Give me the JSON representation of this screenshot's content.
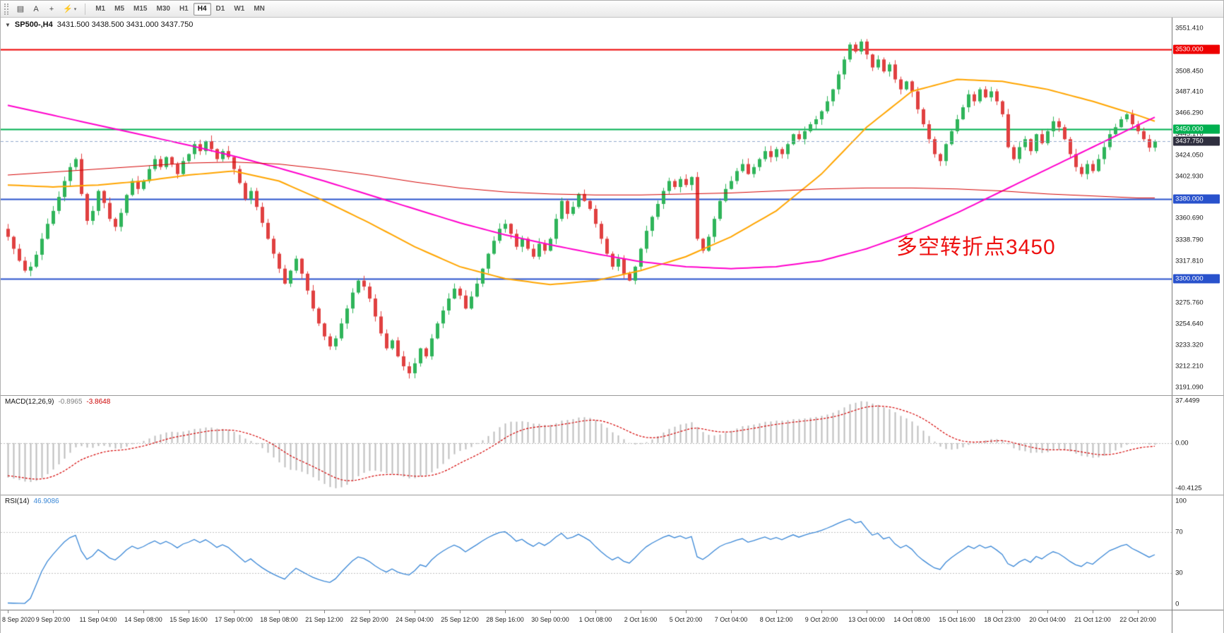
{
  "toolbar": {
    "icons": [
      {
        "name": "chart-list-icon",
        "glyph": "▤"
      },
      {
        "name": "cursor-a-button",
        "label": "A"
      },
      {
        "name": "crosshair-button",
        "glyph": "+"
      },
      {
        "name": "quick-tools-dropdown",
        "glyph": "⚡",
        "caret": "▾"
      }
    ],
    "timeframes": [
      "M1",
      "M5",
      "M15",
      "M30",
      "H1",
      "H4",
      "D1",
      "W1",
      "MN"
    ],
    "active_timeframe": "H4"
  },
  "chart_header": {
    "collapse_icon": "▼",
    "symbol_period": "SP500-,H4",
    "ohlc": "3431.500 3438.500 3431.000 3437.750"
  },
  "annotation": {
    "text": "多空转折点3450",
    "color": "#ee1111"
  },
  "price_axis": {
    "ticks": [
      "3551.410",
      "3508.450",
      "3487.410",
      "3466.290",
      "3445.170",
      "3424.050",
      "3402.930",
      "3360.690",
      "3338.790",
      "3317.810",
      "3275.760",
      "3254.640",
      "3233.320",
      "3212.210",
      "3191.090"
    ],
    "badges": [
      {
        "value": "3530.000",
        "price": 3530.0,
        "color": "#ee0000"
      },
      {
        "value": "3450.000",
        "price": 3450.0,
        "color": "#00b050"
      },
      {
        "value": "3437.750",
        "price": 3437.75,
        "color": "#2f2f3f"
      },
      {
        "value": "3380.000",
        "price": 3380.0,
        "color": "#2952cc"
      },
      {
        "value": "3300.000",
        "price": 3300.0,
        "color": "#2952cc"
      }
    ]
  },
  "hlines": [
    {
      "price": 3530.0,
      "color": "#ee0000",
      "width": 2
    },
    {
      "price": 3450.0,
      "color": "#00b050",
      "width": 2
    },
    {
      "price": 3380.0,
      "color": "#2952cc",
      "width": 2
    },
    {
      "price": 3300.0,
      "color": "#2952cc",
      "width": 2
    }
  ],
  "current_price": {
    "price": 3437.75,
    "color": "#90a8cc"
  },
  "indicators": {
    "macd": {
      "name": "MACD(12,26,9)",
      "value_main": "-0.8965",
      "value_signal": "-3.8648",
      "axis": [
        "37.4499",
        "0.00",
        "-40.4125"
      ],
      "range": [
        -46,
        42
      ],
      "hist_color": "#bdbdbd",
      "signal_color": "#d40000"
    },
    "rsi": {
      "name": "RSI(14)",
      "value": "46.9086",
      "axis": [
        "100",
        "70",
        "30",
        "0"
      ],
      "levels": [
        70,
        30
      ],
      "line_color": "#3a87d6"
    }
  },
  "chart_data": {
    "type": "candlestick",
    "title": "SP500-,H4",
    "symbol": "SP500-",
    "period": "H4",
    "price_range": [
      3183,
      3562
    ],
    "up_color": "#2fb45a",
    "down_color": "#e04040",
    "first_open": 3350,
    "closes": [
      3342,
      3330,
      3318,
      3308,
      3312,
      3324,
      3340,
      3355,
      3368,
      3382,
      3398,
      3412,
      3420,
      3385,
      3358,
      3368,
      3388,
      3376,
      3360,
      3352,
      3366,
      3384,
      3398,
      3390,
      3398,
      3410,
      3420,
      3412,
      3422,
      3415,
      3405,
      3418,
      3425,
      3435,
      3428,
      3438,
      3430,
      3420,
      3428,
      3422,
      3410,
      3396,
      3380,
      3388,
      3372,
      3356,
      3340,
      3325,
      3310,
      3295,
      3308,
      3320,
      3305,
      3288,
      3270,
      3255,
      3242,
      3232,
      3240,
      3255,
      3270,
      3286,
      3298,
      3292,
      3280,
      3262,
      3245,
      3230,
      3238,
      3222,
      3212,
      3205,
      3215,
      3230,
      3222,
      3240,
      3255,
      3268,
      3280,
      3290,
      3283,
      3270,
      3282,
      3295,
      3310,
      3325,
      3338,
      3350,
      3355,
      3345,
      3332,
      3340,
      3330,
      3322,
      3335,
      3328,
      3340,
      3360,
      3378,
      3365,
      3372,
      3385,
      3378,
      3370,
      3355,
      3340,
      3325,
      3312,
      3320,
      3305,
      3298,
      3312,
      3330,
      3348,
      3362,
      3375,
      3388,
      3398,
      3392,
      3400,
      3394,
      3402,
      3340,
      3328,
      3342,
      3360,
      3378,
      3390,
      3398,
      3408,
      3415,
      3405,
      3412,
      3420,
      3428,
      3422,
      3430,
      3425,
      3435,
      3445,
      3440,
      3448,
      3455,
      3460,
      3468,
      3478,
      3490,
      3505,
      3520,
      3535,
      3528,
      3538,
      3525,
      3512,
      3520,
      3508,
      3515,
      3500,
      3490,
      3498,
      3488,
      3470,
      3455,
      3440,
      3425,
      3418,
      3435,
      3448,
      3460,
      3472,
      3485,
      3478,
      3490,
      3482,
      3488,
      3478,
      3465,
      3432,
      3420,
      3432,
      3440,
      3428,
      3445,
      3436,
      3448,
      3458,
      3452,
      3440,
      3425,
      3412,
      3405,
      3415,
      3408,
      3420,
      3432,
      3445,
      3452,
      3460,
      3465,
      3455,
      3448,
      3440,
      3431.5,
      3437.75
    ],
    "sample_bars": [
      0,
      8,
      16,
      24,
      32,
      40,
      48,
      56,
      64,
      72,
      80,
      88,
      96,
      104,
      112,
      120,
      128,
      136,
      144,
      152,
      160,
      168,
      176,
      184,
      192,
      200,
      203
    ],
    "ma": [
      {
        "name": "ma-mid-orange",
        "color": "#ffa500",
        "width": 2,
        "values": [
          3394,
          3392,
          3394,
          3398,
          3404,
          3408,
          3398,
          3378,
          3356,
          3332,
          3312,
          3300,
          3294,
          3298,
          3308,
          3322,
          3342,
          3368,
          3405,
          3452,
          3488,
          3500,
          3498,
          3490,
          3478,
          3464,
          3458
        ]
      },
      {
        "name": "ma-slow-magenta",
        "color": "#ff00cc",
        "width": 2,
        "values": [
          3474,
          3464,
          3454,
          3444,
          3434,
          3423,
          3411,
          3398,
          3384,
          3370,
          3356,
          3344,
          3334,
          3325,
          3317,
          3312,
          3310,
          3312,
          3318,
          3330,
          3346,
          3366,
          3388,
          3410,
          3432,
          3454,
          3462
        ]
      },
      {
        "name": "ma-long-red",
        "color": "#d40000",
        "width": 1,
        "values": [
          3404,
          3407,
          3410,
          3413,
          3416,
          3417,
          3415,
          3410,
          3404,
          3397,
          3391,
          3387,
          3385,
          3384,
          3384,
          3385,
          3386,
          3388,
          3390,
          3391,
          3391,
          3390,
          3388,
          3385,
          3383,
          3381,
          3381
        ]
      }
    ],
    "macd": {
      "fast": 12,
      "slow": 26,
      "signal": 9,
      "warmup_start": 3520,
      "warmup_bars": 36
    },
    "rsi": {
      "period": 14
    },
    "time_labels": [
      "8 Sep 2020",
      "9 Sep 20:00",
      "11 Sep 04:00",
      "14 Sep 08:00",
      "15 Sep 16:00",
      "17 Sep 00:00",
      "18 Sep 08:00",
      "21 Sep 12:00",
      "22 Sep 20:00",
      "24 Sep 04:00",
      "25 Sep 12:00",
      "28 Sep 16:00",
      "30 Sep 00:00",
      "1 Oct 08:00",
      "2 Oct 16:00",
      "5 Oct 20:00",
      "7 Oct 04:00",
      "8 Oct 12:00",
      "9 Oct 20:00",
      "13 Oct 00:00",
      "14 Oct 08:00",
      "15 Oct 16:00",
      "18 Oct 23:00",
      "20 Oct 04:00",
      "21 Oct 12:00",
      "22 Oct 20:00"
    ],
    "label_every_bars": 8
  }
}
